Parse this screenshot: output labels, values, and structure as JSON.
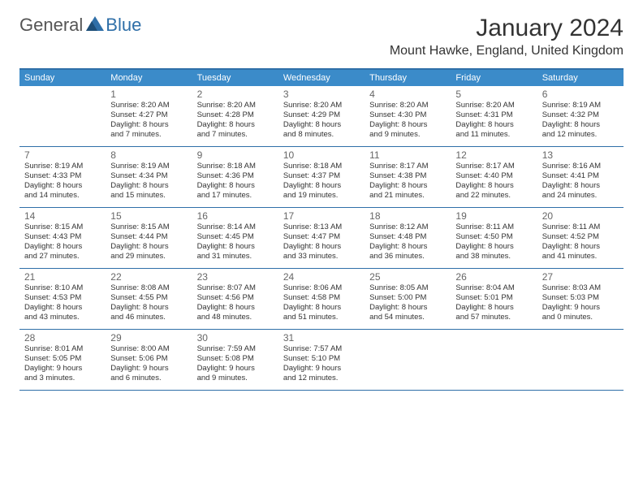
{
  "colors": {
    "header_bg": "#3b8bc9",
    "header_border_top": "#2f6fa8",
    "row_border": "#2f6fa8",
    "header_text": "#ffffff",
    "body_text": "#333333",
    "daynum_text": "#666666",
    "logo_gray": "#555555",
    "logo_blue": "#2f6fa8",
    "background": "#ffffff"
  },
  "logo": {
    "part1": "General",
    "part2": "Blue"
  },
  "title": "January 2024",
  "location": "Mount Hawke, England, United Kingdom",
  "day_headers": [
    "Sunday",
    "Monday",
    "Tuesday",
    "Wednesday",
    "Thursday",
    "Friday",
    "Saturday"
  ],
  "layout": {
    "columns": 7,
    "header_fontsize": 11,
    "daynum_fontsize": 12,
    "body_fontsize": 9.5,
    "title_fontsize": 30,
    "location_fontsize": 16
  },
  "weeks": [
    [
      null,
      {
        "n": "1",
        "sr": "Sunrise: 8:20 AM",
        "ss": "Sunset: 4:27 PM",
        "d1": "Daylight: 8 hours",
        "d2": "and 7 minutes."
      },
      {
        "n": "2",
        "sr": "Sunrise: 8:20 AM",
        "ss": "Sunset: 4:28 PM",
        "d1": "Daylight: 8 hours",
        "d2": "and 7 minutes."
      },
      {
        "n": "3",
        "sr": "Sunrise: 8:20 AM",
        "ss": "Sunset: 4:29 PM",
        "d1": "Daylight: 8 hours",
        "d2": "and 8 minutes."
      },
      {
        "n": "4",
        "sr": "Sunrise: 8:20 AM",
        "ss": "Sunset: 4:30 PM",
        "d1": "Daylight: 8 hours",
        "d2": "and 9 minutes."
      },
      {
        "n": "5",
        "sr": "Sunrise: 8:20 AM",
        "ss": "Sunset: 4:31 PM",
        "d1": "Daylight: 8 hours",
        "d2": "and 11 minutes."
      },
      {
        "n": "6",
        "sr": "Sunrise: 8:19 AM",
        "ss": "Sunset: 4:32 PM",
        "d1": "Daylight: 8 hours",
        "d2": "and 12 minutes."
      }
    ],
    [
      {
        "n": "7",
        "sr": "Sunrise: 8:19 AM",
        "ss": "Sunset: 4:33 PM",
        "d1": "Daylight: 8 hours",
        "d2": "and 14 minutes."
      },
      {
        "n": "8",
        "sr": "Sunrise: 8:19 AM",
        "ss": "Sunset: 4:34 PM",
        "d1": "Daylight: 8 hours",
        "d2": "and 15 minutes."
      },
      {
        "n": "9",
        "sr": "Sunrise: 8:18 AM",
        "ss": "Sunset: 4:36 PM",
        "d1": "Daylight: 8 hours",
        "d2": "and 17 minutes."
      },
      {
        "n": "10",
        "sr": "Sunrise: 8:18 AM",
        "ss": "Sunset: 4:37 PM",
        "d1": "Daylight: 8 hours",
        "d2": "and 19 minutes."
      },
      {
        "n": "11",
        "sr": "Sunrise: 8:17 AM",
        "ss": "Sunset: 4:38 PM",
        "d1": "Daylight: 8 hours",
        "d2": "and 21 minutes."
      },
      {
        "n": "12",
        "sr": "Sunrise: 8:17 AM",
        "ss": "Sunset: 4:40 PM",
        "d1": "Daylight: 8 hours",
        "d2": "and 22 minutes."
      },
      {
        "n": "13",
        "sr": "Sunrise: 8:16 AM",
        "ss": "Sunset: 4:41 PM",
        "d1": "Daylight: 8 hours",
        "d2": "and 24 minutes."
      }
    ],
    [
      {
        "n": "14",
        "sr": "Sunrise: 8:15 AM",
        "ss": "Sunset: 4:43 PM",
        "d1": "Daylight: 8 hours",
        "d2": "and 27 minutes."
      },
      {
        "n": "15",
        "sr": "Sunrise: 8:15 AM",
        "ss": "Sunset: 4:44 PM",
        "d1": "Daylight: 8 hours",
        "d2": "and 29 minutes."
      },
      {
        "n": "16",
        "sr": "Sunrise: 8:14 AM",
        "ss": "Sunset: 4:45 PM",
        "d1": "Daylight: 8 hours",
        "d2": "and 31 minutes."
      },
      {
        "n": "17",
        "sr": "Sunrise: 8:13 AM",
        "ss": "Sunset: 4:47 PM",
        "d1": "Daylight: 8 hours",
        "d2": "and 33 minutes."
      },
      {
        "n": "18",
        "sr": "Sunrise: 8:12 AM",
        "ss": "Sunset: 4:48 PM",
        "d1": "Daylight: 8 hours",
        "d2": "and 36 minutes."
      },
      {
        "n": "19",
        "sr": "Sunrise: 8:11 AM",
        "ss": "Sunset: 4:50 PM",
        "d1": "Daylight: 8 hours",
        "d2": "and 38 minutes."
      },
      {
        "n": "20",
        "sr": "Sunrise: 8:11 AM",
        "ss": "Sunset: 4:52 PM",
        "d1": "Daylight: 8 hours",
        "d2": "and 41 minutes."
      }
    ],
    [
      {
        "n": "21",
        "sr": "Sunrise: 8:10 AM",
        "ss": "Sunset: 4:53 PM",
        "d1": "Daylight: 8 hours",
        "d2": "and 43 minutes."
      },
      {
        "n": "22",
        "sr": "Sunrise: 8:08 AM",
        "ss": "Sunset: 4:55 PM",
        "d1": "Daylight: 8 hours",
        "d2": "and 46 minutes."
      },
      {
        "n": "23",
        "sr": "Sunrise: 8:07 AM",
        "ss": "Sunset: 4:56 PM",
        "d1": "Daylight: 8 hours",
        "d2": "and 48 minutes."
      },
      {
        "n": "24",
        "sr": "Sunrise: 8:06 AM",
        "ss": "Sunset: 4:58 PM",
        "d1": "Daylight: 8 hours",
        "d2": "and 51 minutes."
      },
      {
        "n": "25",
        "sr": "Sunrise: 8:05 AM",
        "ss": "Sunset: 5:00 PM",
        "d1": "Daylight: 8 hours",
        "d2": "and 54 minutes."
      },
      {
        "n": "26",
        "sr": "Sunrise: 8:04 AM",
        "ss": "Sunset: 5:01 PM",
        "d1": "Daylight: 8 hours",
        "d2": "and 57 minutes."
      },
      {
        "n": "27",
        "sr": "Sunrise: 8:03 AM",
        "ss": "Sunset: 5:03 PM",
        "d1": "Daylight: 9 hours",
        "d2": "and 0 minutes."
      }
    ],
    [
      {
        "n": "28",
        "sr": "Sunrise: 8:01 AM",
        "ss": "Sunset: 5:05 PM",
        "d1": "Daylight: 9 hours",
        "d2": "and 3 minutes."
      },
      {
        "n": "29",
        "sr": "Sunrise: 8:00 AM",
        "ss": "Sunset: 5:06 PM",
        "d1": "Daylight: 9 hours",
        "d2": "and 6 minutes."
      },
      {
        "n": "30",
        "sr": "Sunrise: 7:59 AM",
        "ss": "Sunset: 5:08 PM",
        "d1": "Daylight: 9 hours",
        "d2": "and 9 minutes."
      },
      {
        "n": "31",
        "sr": "Sunrise: 7:57 AM",
        "ss": "Sunset: 5:10 PM",
        "d1": "Daylight: 9 hours",
        "d2": "and 12 minutes."
      },
      null,
      null,
      null
    ]
  ]
}
